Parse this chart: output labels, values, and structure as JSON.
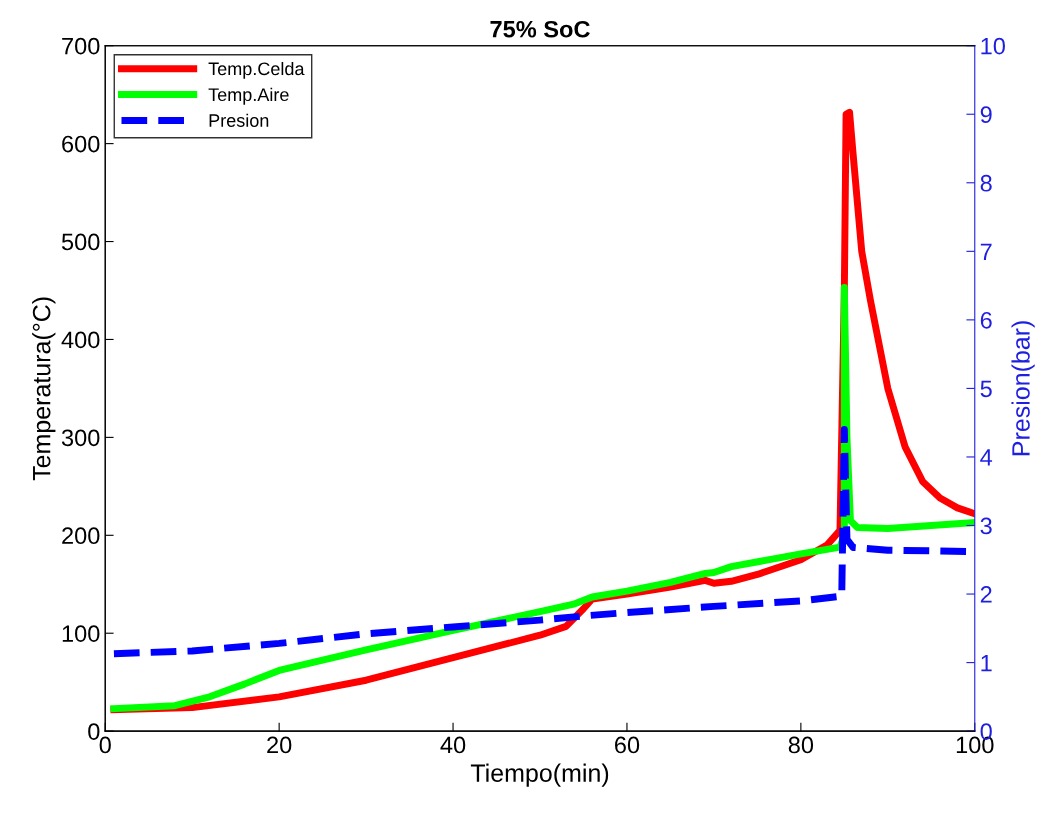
{
  "chart_data": {
    "type": "line",
    "title": "75% SoC",
    "xlabel": "Tiempo(min)",
    "ylabel": "Temperatura(°C)",
    "y2label": "Presion(bar)",
    "xlim": [
      0,
      100
    ],
    "xticks": [
      0,
      20,
      40,
      60,
      80,
      100
    ],
    "ylim": [
      0,
      700
    ],
    "yticks": [
      0,
      100,
      200,
      300,
      400,
      500,
      600,
      700
    ],
    "y2lim": [
      0,
      10
    ],
    "y2ticks": [
      0,
      1,
      2,
      3,
      4,
      5,
      6,
      7,
      8,
      9,
      10
    ],
    "grid": false,
    "legend": "top left",
    "series": [
      {
        "name": "Temp.Celda",
        "color": "#ff0000",
        "line_style": "solid",
        "x": [
          1,
          10,
          20,
          30,
          40,
          50,
          53,
          55,
          56,
          60,
          65,
          69,
          70,
          72,
          75,
          80,
          83,
          84.5,
          85,
          85.2,
          85.6,
          86,
          87,
          88,
          90,
          92,
          94,
          96,
          98,
          100
        ],
        "values": [
          22,
          24,
          35,
          52,
          75,
          98,
          107,
          125,
          135,
          140,
          147,
          154,
          151,
          153,
          160,
          175,
          190,
          205,
          450,
          630,
          632,
          590,
          490,
          440,
          350,
          290,
          255,
          238,
          228,
          222
        ]
      },
      {
        "name": "Temp.Aire",
        "color": "#00ff00",
        "line_style": "solid",
        "x": [
          1,
          8,
          12,
          16,
          20,
          30,
          40,
          50,
          54,
          56,
          60,
          65,
          69,
          70,
          72,
          80,
          84.5,
          85,
          85,
          85.3,
          85.7,
          86.5,
          90,
          95,
          100
        ],
        "values": [
          23,
          26,
          35,
          48,
          62,
          83,
          103,
          122,
          130,
          137,
          143,
          152,
          161,
          162,
          168,
          181,
          188,
          200,
          453,
          300,
          215,
          208,
          207,
          210,
          213
        ]
      },
      {
        "name": "Presion",
        "color": "#0000ff",
        "line_style": "dashed",
        "axis": "y2",
        "x": [
          1,
          10,
          20,
          30,
          40,
          50,
          55,
          60,
          70,
          80,
          84.7,
          85,
          85.3,
          86,
          90,
          100
        ],
        "values": [
          1.13,
          1.17,
          1.28,
          1.42,
          1.52,
          1.62,
          1.68,
          1.73,
          1.82,
          1.9,
          1.97,
          4.4,
          2.8,
          2.68,
          2.64,
          2.62
        ]
      }
    ]
  }
}
